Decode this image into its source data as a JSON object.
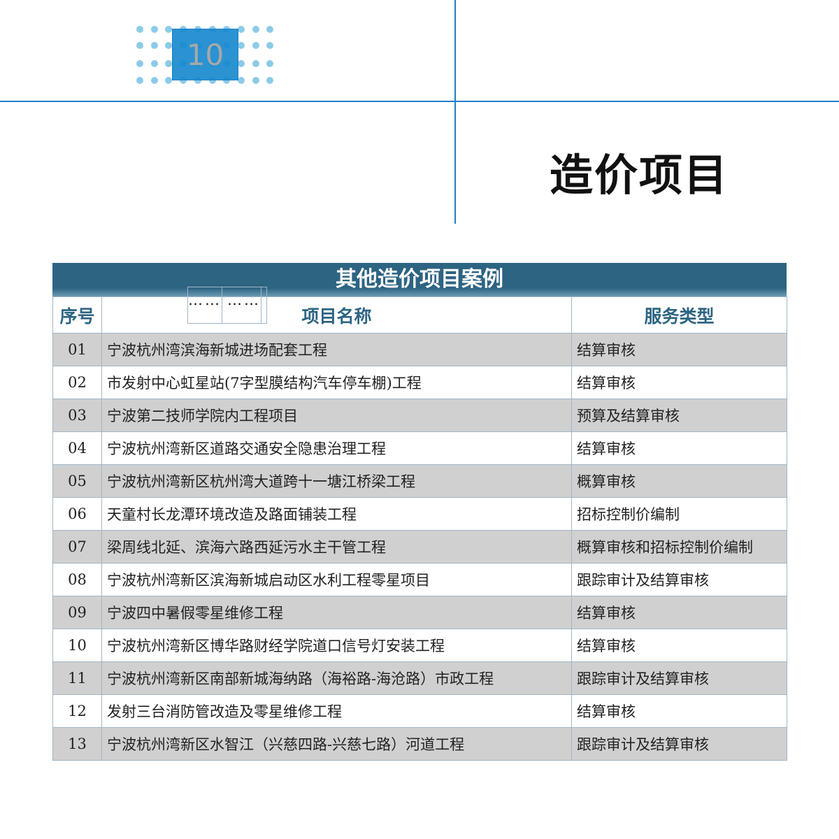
{
  "page_number": "10",
  "page_title": "造价项目",
  "colors": {
    "accent": "#1f7fc4",
    "table_header": "#2d6482",
    "row_shade": "#d0d0d0"
  },
  "table": {
    "title": "其他造价项目案例",
    "headers": [
      "序号",
      "项目名称",
      "服务类型"
    ],
    "rows": [
      {
        "no": "01",
        "name": "宁波杭州湾滨海新城进场配套工程",
        "type": "结算审核"
      },
      {
        "no": "02",
        "name": "市发射中心虹星站(7字型膜结构汽车停车棚)工程",
        "type": "结算审核"
      },
      {
        "no": "03",
        "name": "宁波第二技师学院内工程项目",
        "type": "预算及结算审核"
      },
      {
        "no": "04",
        "name": "宁波杭州湾新区道路交通安全隐患治理工程",
        "type": "结算审核"
      },
      {
        "no": "05",
        "name": "宁波杭州湾新区杭州湾大道跨十一塘江桥梁工程",
        "type": "概算审核"
      },
      {
        "no": "06",
        "name": "天童村长龙潭环境改造及路面铺装工程",
        "type": "招标控制价编制"
      },
      {
        "no": "07",
        "name": "梁周线北延、滨海六路西延污水主干管工程",
        "type": "概算审核和招标控制价编制"
      },
      {
        "no": "08",
        "name": "宁波杭州湾新区滨海新城启动区水利工程零星项目",
        "type": "跟踪审计及结算审核"
      },
      {
        "no": "09",
        "name": "宁波四中暑假零星维修工程",
        "type": "结算审核"
      },
      {
        "no": "10",
        "name": "宁波杭州湾新区博华路财经学院道口信号灯安装工程",
        "type": "结算审核"
      },
      {
        "no": "11",
        "name": "宁波杭州湾新区南部新城海纳路（海裕路-海沧路）市政工程",
        "type": "跟踪审计及结算审核"
      },
      {
        "no": "12",
        "name": "发射三台消防管改造及零星维修工程",
        "type": "结算审核"
      },
      {
        "no": "13",
        "name": "宁波杭州湾新区水智江（兴慈四路-兴慈七路）河道工程",
        "type": "跟踪审计及结算审核"
      }
    ],
    "ellipsis_no": "……",
    "ellipsis_name": "……"
  }
}
